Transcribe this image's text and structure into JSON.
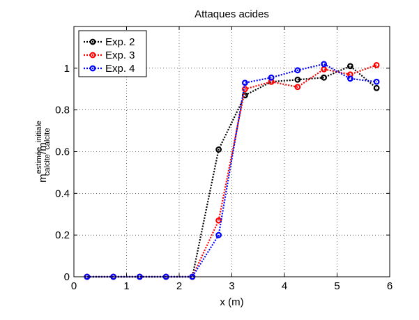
{
  "chart_data": {
    "type": "line",
    "title": "Attaques acides",
    "xlabel": "x (m)",
    "ylabel": {
      "base": "m",
      "sup1": "estimée",
      "sub1": "calcite",
      "slash": "/m",
      "sup2": "initiale",
      "sub2": "calcite"
    },
    "xlim": [
      0,
      6
    ],
    "ylim": [
      0,
      1.2
    ],
    "xticks": [
      0,
      1,
      2,
      3,
      4,
      5,
      6
    ],
    "yticks": [
      0,
      0.2,
      0.4,
      0.6,
      0.8,
      1
    ],
    "xtick_labels": [
      "0",
      "1",
      "2",
      "3",
      "4",
      "5",
      "6"
    ],
    "ytick_labels": [
      "0",
      "0.2",
      "0.4",
      "0.6",
      "0.8",
      "1"
    ],
    "grid": true,
    "legend_position": "top-left",
    "series": [
      {
        "name": "Exp. 2",
        "color": "#000000",
        "x": [
          0.25,
          0.75,
          1.25,
          1.75,
          2.25,
          2.75,
          3.25,
          3.75,
          4.25,
          4.75,
          5.25,
          5.75
        ],
        "y": [
          0,
          0,
          0,
          0,
          0,
          0.61,
          0.87,
          0.935,
          0.945,
          0.955,
          1.01,
          0.905
        ]
      },
      {
        "name": "Exp. 3",
        "color": "#ff0000",
        "x": [
          0.25,
          0.75,
          1.25,
          1.75,
          2.25,
          2.75,
          3.25,
          3.75,
          4.25,
          4.75,
          5.25,
          5.75
        ],
        "y": [
          0,
          0,
          0,
          0,
          0,
          0.27,
          0.9,
          0.935,
          0.91,
          0.995,
          0.97,
          1.015
        ]
      },
      {
        "name": "Exp. 4",
        "color": "#0000ff",
        "x": [
          0.25,
          0.75,
          1.25,
          1.75,
          2.25,
          2.75,
          3.25,
          3.75,
          4.25,
          4.75,
          5.25,
          5.75
        ],
        "y": [
          0,
          0,
          0,
          0,
          0,
          0.2,
          0.93,
          0.955,
          0.99,
          1.02,
          0.95,
          0.935
        ]
      }
    ]
  }
}
